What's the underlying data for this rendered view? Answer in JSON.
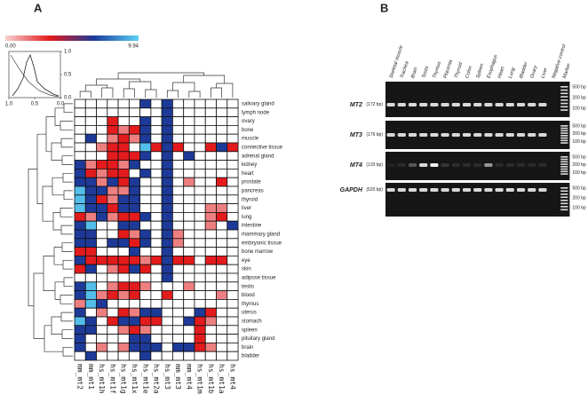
{
  "panel_a": {
    "label": "A",
    "colorbar": {
      "min": {
        "value": 0,
        "label": "0.00"
      },
      "max": {
        "value": 9.94,
        "label": "9.94"
      },
      "colors": [
        "#f7d2d2",
        "#e31a1c",
        "#1c3a9a",
        "#5cd2f7"
      ]
    },
    "density_key": {
      "x_ticks": [
        {
          "value": 1,
          "label": "1.0"
        },
        {
          "value": 0.5,
          "label": "0.5"
        },
        {
          "value": 0,
          "label": "0.0"
        }
      ],
      "y_ticks": [
        {
          "value": 1,
          "label": "1.0"
        },
        {
          "value": 0.5,
          "label": "0.5"
        },
        {
          "value": 0,
          "label": "0.0"
        }
      ]
    },
    "heatmap": {
      "columns": [
        "mm_mt2",
        "mm_mt1",
        "hs_mt1h",
        "hs_mt1f",
        "hs_mt1g",
        "hs_mt1x",
        "hs_mt1e",
        "hs_mt2a",
        "hs_mt3",
        "mm_mt3",
        "mm_mt4",
        "hs_mt1m",
        "hs_mt1b",
        "hs_mt1a",
        "hs_mt4"
      ],
      "rows": [
        "salivary gland",
        "lymph node",
        "ovary",
        "bone",
        "muscle",
        "connective tissue",
        "adrenal gland",
        "kidney",
        "heart",
        "prostate",
        "pancreas",
        "thyroid",
        "liver",
        "lung",
        "intestine",
        "mammary gland",
        "embryonic tissue",
        "bone marrow",
        "eye",
        "skin",
        "adipose tissue",
        "testis",
        "blood",
        "thymus",
        "uterus",
        "stomach",
        "spleen",
        "pituitary gland",
        "brain",
        "bladder"
      ],
      "values": [
        [
          null,
          null,
          null,
          null,
          null,
          null,
          6.6,
          null,
          6.6,
          null,
          null,
          null,
          null,
          null,
          null
        ],
        [
          null,
          null,
          null,
          null,
          null,
          null,
          null,
          null,
          6.6,
          null,
          null,
          null,
          null,
          null,
          null
        ],
        [
          null,
          null,
          null,
          3.3,
          null,
          null,
          6.6,
          null,
          6.6,
          null,
          null,
          null,
          null,
          null,
          null
        ],
        [
          null,
          null,
          null,
          3.3,
          1.5,
          3.3,
          6.6,
          null,
          6.6,
          null,
          null,
          null,
          null,
          null,
          null
        ],
        [
          null,
          6.6,
          null,
          1.5,
          3.3,
          1.5,
          6.6,
          null,
          6.6,
          null,
          null,
          null,
          null,
          null,
          null
        ],
        [
          null,
          null,
          1.5,
          3.3,
          3.3,
          null,
          9.5,
          3.3,
          6.6,
          3.3,
          null,
          null,
          3.3,
          6.6,
          3.3
        ],
        [
          null,
          null,
          null,
          3.3,
          3.3,
          3.3,
          6.6,
          null,
          6.6,
          null,
          6.6,
          null,
          null,
          null,
          null
        ],
        [
          6.6,
          1.5,
          3.3,
          3.3,
          1.5,
          6.6,
          null,
          null,
          6.6,
          null,
          null,
          null,
          null,
          null,
          null
        ],
        [
          6.6,
          3.3,
          1.5,
          3.3,
          3.3,
          null,
          6.6,
          null,
          6.6,
          null,
          null,
          null,
          null,
          null,
          null
        ],
        [
          6.6,
          6.6,
          1.5,
          6.6,
          3.3,
          6.6,
          null,
          null,
          6.6,
          null,
          1.5,
          null,
          null,
          3.3,
          null
        ],
        [
          9.5,
          6.6,
          6.6,
          1.5,
          1.5,
          6.6,
          null,
          null,
          6.6,
          null,
          null,
          null,
          null,
          null,
          null
        ],
        [
          9.5,
          6.6,
          3.3,
          1.5,
          6.6,
          6.6,
          null,
          null,
          6.6,
          null,
          null,
          null,
          null,
          null,
          null
        ],
        [
          9.5,
          6.6,
          6.6,
          3.3,
          6.6,
          6.6,
          null,
          null,
          6.6,
          null,
          null,
          null,
          1.5,
          1.5,
          null
        ],
        [
          3.3,
          1.5,
          6.6,
          1.5,
          3.3,
          3.3,
          6.6,
          null,
          6.6,
          null,
          null,
          null,
          1.5,
          3.3,
          null
        ],
        [
          6.6,
          9.5,
          null,
          null,
          6.6,
          6.6,
          null,
          null,
          6.6,
          null,
          null,
          null,
          1.5,
          null,
          6.6
        ],
        [
          6.6,
          6.6,
          null,
          null,
          3.3,
          1.5,
          6.6,
          null,
          6.6,
          1.5,
          null,
          null,
          null,
          null,
          null
        ],
        [
          6.6,
          6.6,
          null,
          6.6,
          6.6,
          3.3,
          6.6,
          null,
          6.6,
          1.5,
          null,
          null,
          null,
          null,
          null
        ],
        [
          3.3,
          3.3,
          null,
          null,
          null,
          6.6,
          null,
          null,
          6.6,
          null,
          null,
          null,
          null,
          null,
          null
        ],
        [
          6.6,
          3.3,
          3.3,
          3.3,
          3.3,
          3.3,
          1.5,
          3.3,
          6.6,
          3.3,
          3.3,
          null,
          3.3,
          3.3,
          null
        ],
        [
          3.3,
          6.6,
          null,
          1.5,
          3.3,
          6.6,
          3.3,
          null,
          6.6,
          null,
          null,
          null,
          null,
          null,
          null
        ],
        [
          null,
          null,
          null,
          null,
          null,
          null,
          null,
          null,
          6.6,
          null,
          null,
          null,
          null,
          null,
          null
        ],
        [
          6.6,
          9.5,
          null,
          1.5,
          3.3,
          3.3,
          1.5,
          null,
          null,
          null,
          1.5,
          null,
          null,
          null,
          null
        ],
        [
          6.6,
          9.5,
          1.5,
          3.3,
          1.5,
          3.3,
          null,
          null,
          3.3,
          null,
          null,
          null,
          null,
          1.5,
          null
        ],
        [
          1.5,
          9.5,
          6.6,
          null,
          null,
          null,
          null,
          null,
          null,
          null,
          null,
          null,
          null,
          null,
          null
        ],
        [
          6.6,
          null,
          1.5,
          null,
          3.3,
          1.5,
          6.6,
          6.6,
          null,
          null,
          null,
          6.6,
          3.3,
          null,
          null
        ],
        [
          9.5,
          6.6,
          null,
          3.3,
          6.6,
          6.6,
          3.3,
          3.3,
          null,
          null,
          6.6,
          3.3,
          1.5,
          null,
          null
        ],
        [
          6.6,
          6.6,
          null,
          null,
          1.5,
          3.3,
          1.5,
          null,
          null,
          null,
          null,
          3.3,
          null,
          null,
          null
        ],
        [
          6.6,
          null,
          null,
          null,
          null,
          6.6,
          6.6,
          null,
          null,
          null,
          null,
          3.3,
          null,
          null,
          null
        ],
        [
          6.6,
          null,
          1.5,
          null,
          1.5,
          6.6,
          6.6,
          6.6,
          null,
          6.6,
          6.6,
          3.3,
          1.5,
          null,
          null
        ],
        [
          null,
          6.6,
          null,
          null,
          null,
          null,
          6.6,
          null,
          null,
          null,
          null,
          null,
          null,
          null,
          null
        ]
      ]
    }
  },
  "panel_b": {
    "label": "B",
    "lanes": [
      "Skeletal muscle",
      "Trachea",
      "Brain",
      "Testis",
      "Thymus",
      "Placenta",
      "Thyroid",
      "Colon",
      "Spleen",
      "Esophagus",
      "Heart",
      "Lung",
      "Bladder",
      "Ovary",
      "Liver",
      "Negative control",
      "Marker"
    ],
    "gels": [
      {
        "gene": "MT2",
        "size": "(172 bp)",
        "markers": [
          "500 bp",
          "200 bp",
          "100 bp"
        ]
      },
      {
        "gene": "MT3",
        "size": "(176 bp)",
        "markers": [
          "500 bp",
          "200 bp",
          "100 bp"
        ]
      },
      {
        "gene": "MT4",
        "size": "(133 bp)",
        "markers": [
          "500 bp",
          "200 bp",
          "100 bp"
        ]
      },
      {
        "gene": "GAPDH",
        "size": "(520 bp)",
        "markers": [
          "500 bp",
          "200 bp",
          "100 bp"
        ]
      }
    ]
  }
}
